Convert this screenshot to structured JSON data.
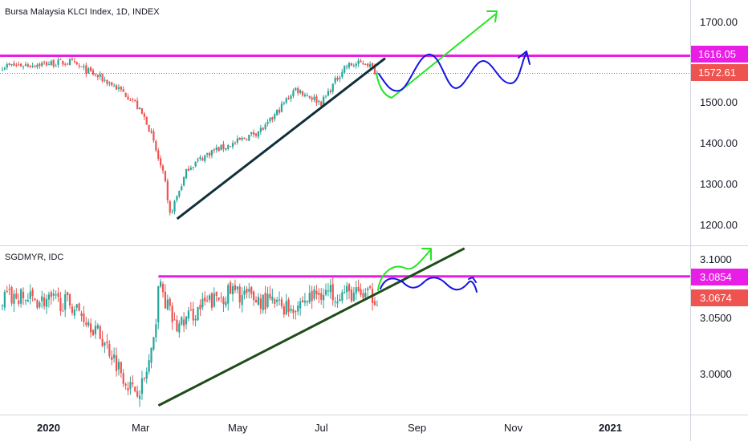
{
  "chart_data": [
    {
      "type": "candlestick",
      "title": "Bursa Malaysia KLCI Index, 1D, INDEX",
      "ylim": [
        1160,
        1760
      ],
      "y_ticks": [
        "1700.00",
        "1500.00",
        "1400.00",
        "1300.00",
        "1200.00"
      ],
      "price_tags": [
        {
          "value": 1616.05,
          "label": "1616.05",
          "color": "#e91ee6"
        },
        {
          "value": 1572.61,
          "label": "1572.61",
          "color": "#ef5350"
        }
      ],
      "levels": [
        {
          "name": "resistance",
          "value": 1616.05,
          "color": "#e91ee6"
        }
      ],
      "trendline": {
        "from": [
          "2020-03-24",
          1214
        ],
        "to": [
          "2020-08-05",
          1610
        ]
      },
      "series": [
        {
          "date": "2020-01-02",
          "close": 1590
        },
        {
          "date": "2020-01-15",
          "close": 1600
        },
        {
          "date": "2020-01-28",
          "close": 1575
        },
        {
          "date": "2020-02-10",
          "close": 1548
        },
        {
          "date": "2020-02-24",
          "close": 1510
        },
        {
          "date": "2020-03-05",
          "close": 1450
        },
        {
          "date": "2020-03-16",
          "close": 1310
        },
        {
          "date": "2020-03-19",
          "close": 1220
        },
        {
          "date": "2020-03-31",
          "close": 1340
        },
        {
          "date": "2020-04-15",
          "close": 1380
        },
        {
          "date": "2020-04-30",
          "close": 1400
        },
        {
          "date": "2020-05-20",
          "close": 1440
        },
        {
          "date": "2020-06-08",
          "close": 1535
        },
        {
          "date": "2020-06-25",
          "close": 1500
        },
        {
          "date": "2020-07-10",
          "close": 1590
        },
        {
          "date": "2020-07-24",
          "close": 1600
        },
        {
          "date": "2020-07-31",
          "close": 1572.61
        }
      ]
    },
    {
      "type": "candlestick",
      "title": "SGDMYR, IDC",
      "ylim": [
        2.968,
        3.112
      ],
      "y_ticks": [
        "3.1000",
        "3.0500",
        "3.0000"
      ],
      "price_tags": [
        {
          "value": 3.0854,
          "label": "3.0854",
          "color": "#e91ee6"
        },
        {
          "value": 3.0674,
          "label": "3.0674",
          "color": "#ef5350"
        }
      ],
      "levels": [
        {
          "name": "resistance",
          "value": 3.0854,
          "color": "#e91ee6"
        }
      ],
      "trendline": {
        "from": [
          "2020-03-12",
          2.972
        ],
        "to": [
          "2020-09-25",
          3.11
        ]
      },
      "series": [
        {
          "date": "2020-01-02",
          "close": 3.068
        },
        {
          "date": "2020-01-15",
          "close": 3.062
        },
        {
          "date": "2020-01-28",
          "close": 3.045
        },
        {
          "date": "2020-02-10",
          "close": 3.02
        },
        {
          "date": "2020-02-24",
          "close": 2.985
        },
        {
          "date": "2020-03-02",
          "close": 2.99
        },
        {
          "date": "2020-03-09",
          "close": 3.025
        },
        {
          "date": "2020-03-12",
          "close": 3.08
        },
        {
          "date": "2020-03-23",
          "close": 3.04
        },
        {
          "date": "2020-04-10",
          "close": 3.06
        },
        {
          "date": "2020-04-28",
          "close": 3.072
        },
        {
          "date": "2020-05-15",
          "close": 3.065
        },
        {
          "date": "2020-06-05",
          "close": 3.058
        },
        {
          "date": "2020-06-25",
          "close": 3.072
        },
        {
          "date": "2020-07-15",
          "close": 3.07
        },
        {
          "date": "2020-07-31",
          "close": 3.0674
        }
      ]
    }
  ],
  "x_axis": {
    "ticks": [
      {
        "date": "2020-01-01",
        "label": "2020",
        "bold": true
      },
      {
        "date": "2020-03-01",
        "label": "Mar",
        "bold": false
      },
      {
        "date": "2020-05-01",
        "label": "May",
        "bold": false
      },
      {
        "date": "2020-07-01",
        "label": "Jul",
        "bold": false
      },
      {
        "date": "2020-09-01",
        "label": "Sep",
        "bold": false
      },
      {
        "date": "2020-11-01",
        "label": "Nov",
        "bold": false
      },
      {
        "date": "2021-01-01",
        "label": "2021",
        "bold": true
      }
    ]
  },
  "colors": {
    "up": "#26a69a",
    "down": "#ef5350",
    "upper_trendline": "#0f2f3a",
    "lower_trendline": "#1f4d1a",
    "projection_green": "#22e622",
    "projection_blue": "#1515e0"
  }
}
